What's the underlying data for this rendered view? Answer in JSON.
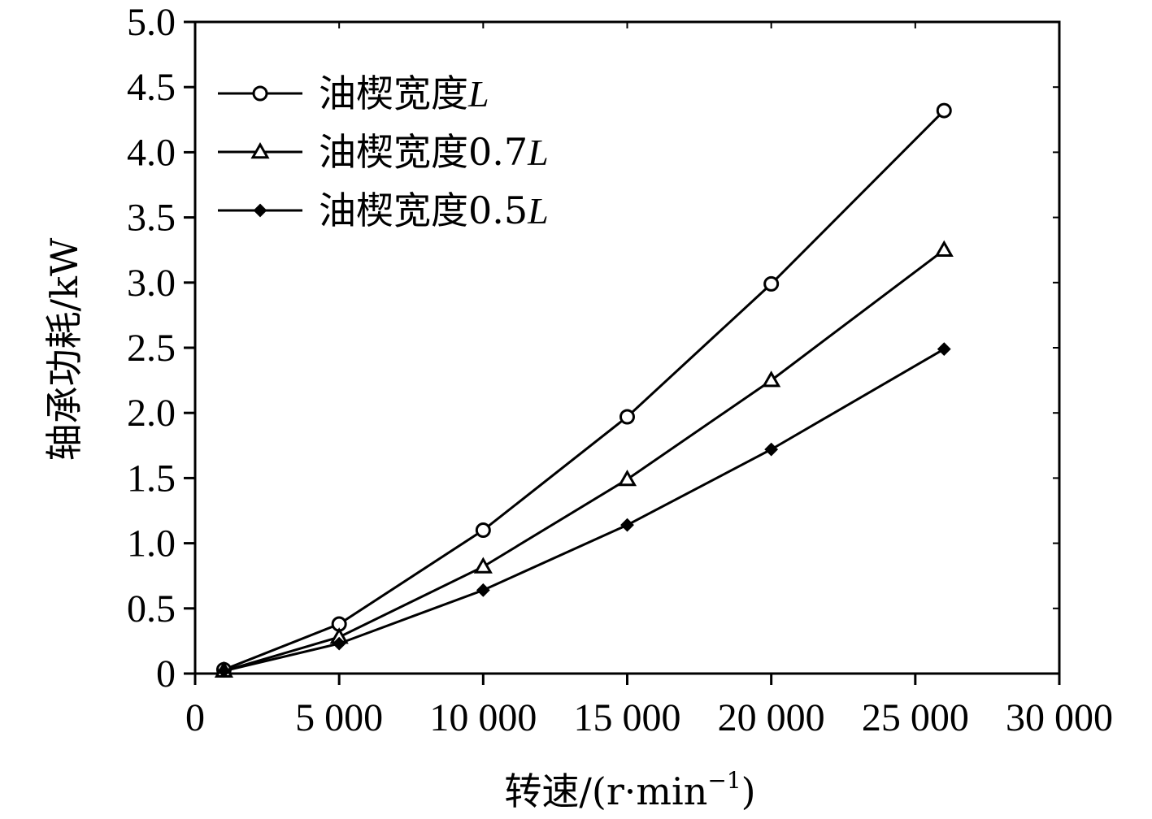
{
  "chart_data": {
    "type": "line",
    "xlabel": "转速/(r·min",
    "xlabel_sup": "−1",
    "xlabel_close": ")",
    "ylabel": "轴承功耗/kW",
    "xlim": [
      0,
      30000
    ],
    "ylim": [
      0,
      5.0
    ],
    "x_ticks": [
      0,
      5000,
      10000,
      15000,
      20000,
      25000,
      30000
    ],
    "x_tick_labels": [
      "0",
      "5 000",
      "10 000",
      "15 000",
      "20 000",
      "25 000",
      "30 000"
    ],
    "y_ticks": [
      0,
      0.5,
      1.0,
      1.5,
      2.0,
      2.5,
      3.0,
      3.5,
      4.0,
      4.5,
      5.0
    ],
    "y_tick_labels": [
      "0",
      "0.5",
      "1.0",
      "1.5",
      "2.0",
      "2.5",
      "3.0",
      "3.5",
      "4.0",
      "4.5",
      "5.0"
    ],
    "grid": false,
    "legend_position": "top-left",
    "x": [
      1000,
      5000,
      10000,
      15000,
      20000,
      26000
    ],
    "series": [
      {
        "name": "油楔宽度",
        "name_suffix": "L",
        "marker": "circle",
        "values": [
          0.03,
          0.38,
          1.1,
          1.97,
          2.99,
          4.32
        ]
      },
      {
        "name": "油楔宽度0.7",
        "name_suffix": "L",
        "marker": "triangle",
        "values": [
          0.02,
          0.28,
          0.82,
          1.49,
          2.25,
          3.25
        ]
      },
      {
        "name": "油楔宽度0.5",
        "name_suffix": "L",
        "marker": "diamond",
        "values": [
          0.02,
          0.23,
          0.64,
          1.14,
          1.72,
          2.49
        ]
      }
    ],
    "colors": {
      "line": "#000000",
      "background": "#ffffff"
    }
  }
}
